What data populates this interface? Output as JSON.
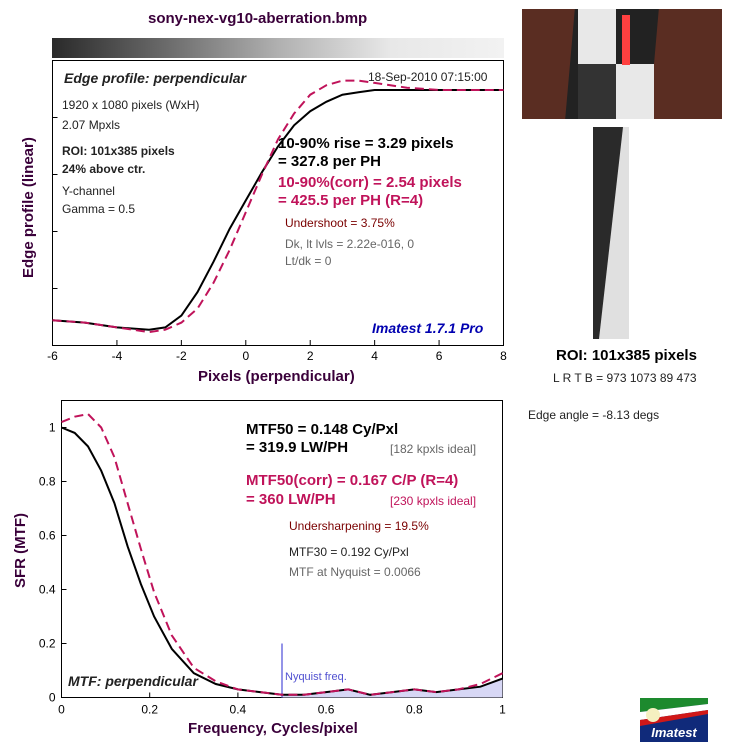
{
  "window_title": "sony-nex-vg10-aberration.bmp",
  "edge": {
    "heading": "Edge profile: perpendicular",
    "timestamp": "18-Sep-2010 07:15:00",
    "info": [
      "1920 x 1080 pixels (WxH)",
      "2.07 Mpxls"
    ],
    "roi_line1": "ROI: 101x385 pixels",
    "roi_line2": "24% above ctr.",
    "channel": "Y-channel",
    "gamma": "Gamma = 0.5",
    "rise": "10-90% rise = 3.29 pixels",
    "rise_ph": "= 327.8 per PH",
    "rise_corr": "10-90%(corr) = 2.54 pixels",
    "rise_corr_ph": "= 425.5 per PH  (R=4)",
    "undershoot": "Undershoot = 3.75%",
    "dk_lt": "Dk, lt lvls = 2.22e-016, 0",
    "lt_dk": "Lt/dk = 0",
    "brand": "Imatest 1.7.1 Pro",
    "xlabel": "Pixels (perpendicular)",
    "ylabel": "Edge profile (linear)"
  },
  "mtf": {
    "mtf50": "MTF50 = 0.148 Cy/Pxl",
    "mtf50_lw": "= 319.9 LW/PH",
    "ideal1": "[182 kpxls ideal]",
    "mtf50c": "MTF50(corr) = 0.167 C/P  (R=4)",
    "mtf50c_lw": "= 360 LW/PH",
    "ideal2": "[230 kpxls ideal]",
    "undersharp": "Undersharpening = 19.5%",
    "mtf30": "MTF30 = 0.192 Cy/Pxl",
    "nyq_mtf": "MTF at Nyquist = 0.0066",
    "nyquist_label": "Nyquist freq.",
    "heading": "MTF: perpendicular",
    "xlabel": "Frequency, Cycles/pixel",
    "ylabel": "SFR (MTF)"
  },
  "roi_panel": {
    "title": "ROI: 101x385 pixels",
    "coords": "L R  T B = 973 1073  89 473",
    "edge_angle": "Edge angle = -8.13 degs"
  },
  "logo_text": "Imatest",
  "colors": {
    "title": "#3a003a",
    "corrected": "#c0135a",
    "raw": "#000000",
    "nyquist": "#7070e0"
  },
  "chart_data": [
    {
      "type": "line",
      "title": "Edge profile: perpendicular",
      "xlabel": "Pixels (perpendicular)",
      "ylabel": "Edge profile (linear)",
      "xlim": [
        -6,
        8
      ],
      "ylim": [
        0,
        1
      ],
      "xticks": [
        -6,
        -4,
        -2,
        0,
        2,
        4,
        6,
        8
      ],
      "series": [
        {
          "values": [
            [
              -6,
              0.02
            ],
            [
              -5,
              0.01
            ],
            [
              -4,
              -0.01
            ],
            [
              -3,
              -0.02
            ],
            [
              -2.5,
              -0.01
            ],
            [
              -2,
              0.04
            ],
            [
              -1.5,
              0.14
            ],
            [
              -1,
              0.27
            ],
            [
              -0.5,
              0.41
            ],
            [
              0,
              0.53
            ],
            [
              0.5,
              0.65
            ],
            [
              1,
              0.76
            ],
            [
              1.5,
              0.85
            ],
            [
              2,
              0.91
            ],
            [
              2.5,
              0.95
            ],
            [
              3,
              0.98
            ],
            [
              3.5,
              0.99
            ],
            [
              4,
              1.0
            ],
            [
              5,
              1.0
            ],
            [
              6,
              1.0
            ],
            [
              7,
              1.0
            ],
            [
              8,
              1.0
            ]
          ]
        },
        {
          "values": [
            [
              -6,
              0.02
            ],
            [
              -5,
              0.01
            ],
            [
              -4,
              -0.01
            ],
            [
              -3,
              -0.03
            ],
            [
              -2.5,
              -0.02
            ],
            [
              -2,
              0.01
            ],
            [
              -1.5,
              0.07
            ],
            [
              -1,
              0.18
            ],
            [
              -0.5,
              0.32
            ],
            [
              0,
              0.48
            ],
            [
              0.5,
              0.64
            ],
            [
              1,
              0.79
            ],
            [
              1.5,
              0.9
            ],
            [
              2,
              0.98
            ],
            [
              2.5,
              1.02
            ],
            [
              3,
              1.04
            ],
            [
              3.5,
              1.04
            ],
            [
              4,
              1.03
            ],
            [
              5,
              1.01
            ],
            [
              6,
              1.0
            ],
            [
              7,
              1.0
            ],
            [
              8,
              1.0
            ]
          ]
        }
      ]
    },
    {
      "type": "line",
      "title": "MTF: perpendicular",
      "xlabel": "Frequency, Cycles/pixel",
      "ylabel": "SFR (MTF)",
      "xlim": [
        0,
        1
      ],
      "ylim": [
        0,
        1.1
      ],
      "xticks": [
        0,
        0.2,
        0.4,
        0.6,
        0.8,
        1
      ],
      "yticks": [
        0,
        0.2,
        0.4,
        0.6,
        0.8,
        1
      ],
      "nyquist": 0.5,
      "series": [
        {
          "values": [
            [
              0,
              1.0
            ],
            [
              0.03,
              0.98
            ],
            [
              0.06,
              0.93
            ],
            [
              0.09,
              0.84
            ],
            [
              0.12,
              0.72
            ],
            [
              0.15,
              0.56
            ],
            [
              0.18,
              0.42
            ],
            [
              0.21,
              0.3
            ],
            [
              0.25,
              0.18
            ],
            [
              0.3,
              0.09
            ],
            [
              0.35,
              0.05
            ],
            [
              0.4,
              0.03
            ],
            [
              0.45,
              0.02
            ],
            [
              0.5,
              0.01
            ],
            [
              0.55,
              0.01
            ],
            [
              0.6,
              0.02
            ],
            [
              0.65,
              0.03
            ],
            [
              0.7,
              0.01
            ],
            [
              0.75,
              0.02
            ],
            [
              0.8,
              0.03
            ],
            [
              0.85,
              0.02
            ],
            [
              0.9,
              0.03
            ],
            [
              0.95,
              0.04
            ],
            [
              1,
              0.07
            ]
          ]
        },
        {
          "values": [
            [
              0,
              1.02
            ],
            [
              0.03,
              1.04
            ],
            [
              0.06,
              1.05
            ],
            [
              0.09,
              1.0
            ],
            [
              0.12,
              0.89
            ],
            [
              0.15,
              0.72
            ],
            [
              0.18,
              0.55
            ],
            [
              0.21,
              0.39
            ],
            [
              0.25,
              0.23
            ],
            [
              0.3,
              0.11
            ],
            [
              0.35,
              0.06
            ],
            [
              0.4,
              0.03
            ],
            [
              0.45,
              0.02
            ],
            [
              0.5,
              0.01
            ],
            [
              0.55,
              0.01
            ],
            [
              0.6,
              0.02
            ],
            [
              0.65,
              0.03
            ],
            [
              0.7,
              0.01
            ],
            [
              0.75,
              0.02
            ],
            [
              0.8,
              0.03
            ],
            [
              0.85,
              0.02
            ],
            [
              0.9,
              0.03
            ],
            [
              0.95,
              0.05
            ],
            [
              1,
              0.09
            ]
          ]
        }
      ]
    }
  ]
}
